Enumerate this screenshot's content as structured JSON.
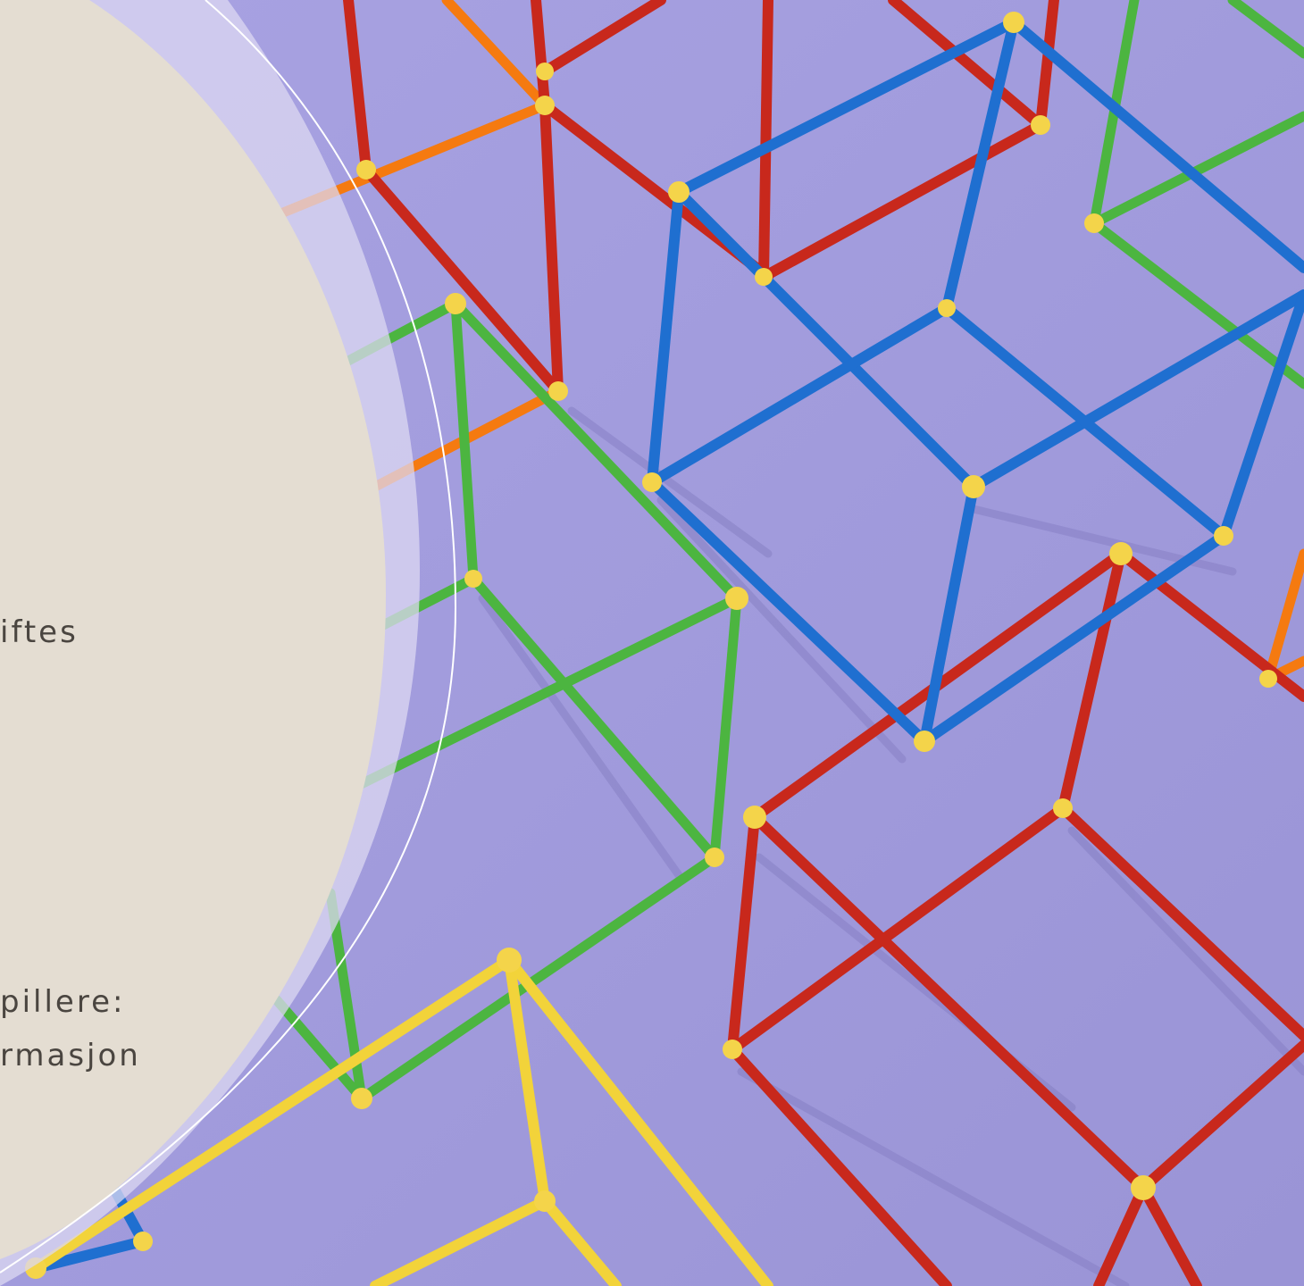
{
  "slide": {
    "text_lines": [
      "iftes",
      "pillere:",
      "rmasjon"
    ]
  },
  "colors": {
    "background": "#a59fde",
    "panel": "#e4ddd2",
    "panel_halo": "#d7d3ee",
    "text": "#4a4540",
    "strut_red": "#c8281c",
    "strut_blue": "#1f6fd0",
    "strut_green": "#4cb540",
    "strut_orange": "#f57a10",
    "strut_yellow": "#f2d33a",
    "connector": "#f4d44a"
  },
  "decorations": {
    "image_subject": "structure-photo",
    "connector_icon": "star-connector-icon"
  }
}
